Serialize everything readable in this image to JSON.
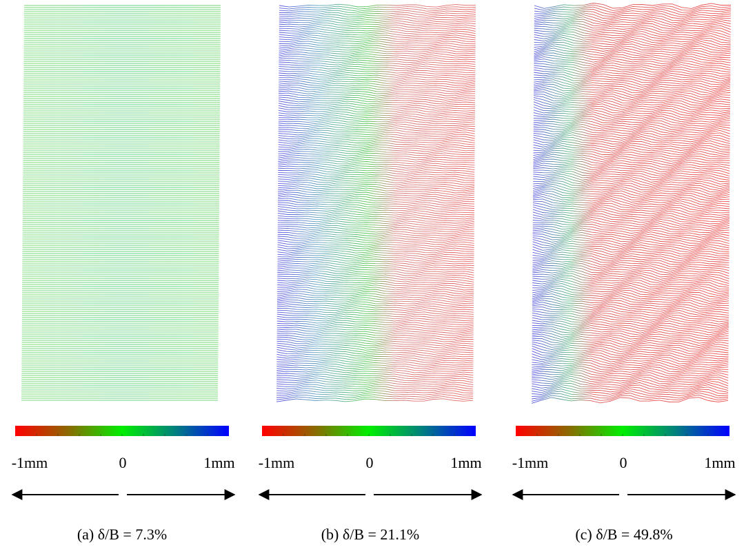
{
  "panels": [
    {
      "colorbar": {
        "min_label": "-1mm",
        "mid_label": "0",
        "max_label": "1mm"
      },
      "caption": "(a) δ/B = 7.3%"
    },
    {
      "colorbar": {
        "min_label": "-1mm",
        "mid_label": "0",
        "max_label": "1mm"
      },
      "caption": "(b) δ/B = 21.1%"
    },
    {
      "colorbar": {
        "min_label": "-1mm",
        "mid_label": "0",
        "max_label": "1mm"
      },
      "caption": "(c) δ/B = 49.8%"
    }
  ]
}
